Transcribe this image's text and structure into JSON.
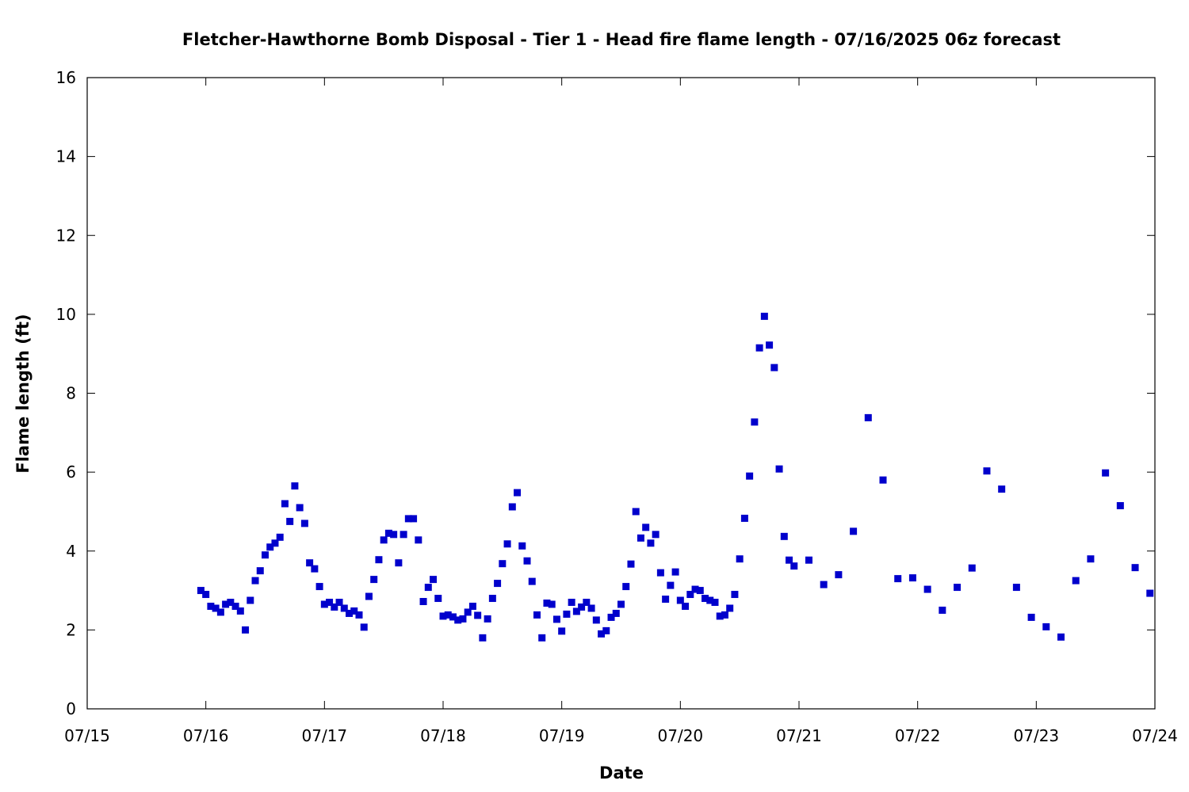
{
  "chart_data": {
    "type": "scatter",
    "title": "Fletcher-Hawthorne Bomb Disposal - Tier 1 - Head fire flame length - 07/16/2025 06z forecast",
    "xlabel": "Date",
    "ylabel": "Flame length (ft)",
    "xlim": [
      "07/15 00:00",
      "07/24 00:00"
    ],
    "ylim": [
      0,
      16
    ],
    "x_ticks": [
      "07/15",
      "07/16",
      "07/17",
      "07/18",
      "07/19",
      "07/20",
      "07/21",
      "07/22",
      "07/23",
      "07/24"
    ],
    "y_ticks": [
      0,
      2,
      4,
      6,
      8,
      10,
      12,
      14,
      16
    ],
    "grid": false,
    "legend": "none",
    "marker_color": "#0000cc",
    "series": [
      {
        "points": [
          [
            "07/15 23:00",
            3.0
          ],
          [
            "07/16 00:00",
            2.9
          ],
          [
            "07/16 01:00",
            2.6
          ],
          [
            "07/16 02:00",
            2.55
          ],
          [
            "07/16 03:00",
            2.45
          ],
          [
            "07/16 04:00",
            2.65
          ],
          [
            "07/16 05:00",
            2.7
          ],
          [
            "07/16 06:00",
            2.6
          ],
          [
            "07/16 07:00",
            2.48
          ],
          [
            "07/16 08:00",
            2.0
          ],
          [
            "07/16 09:00",
            2.75
          ],
          [
            "07/16 10:00",
            3.25
          ],
          [
            "07/16 11:00",
            3.5
          ],
          [
            "07/16 12:00",
            3.9
          ],
          [
            "07/16 13:00",
            4.1
          ],
          [
            "07/16 14:00",
            4.2
          ],
          [
            "07/16 15:00",
            4.35
          ],
          [
            "07/16 16:00",
            5.2
          ],
          [
            "07/16 17:00",
            4.75
          ],
          [
            "07/16 18:00",
            5.65
          ],
          [
            "07/16 19:00",
            5.1
          ],
          [
            "07/16 20:00",
            4.7
          ],
          [
            "07/16 21:00",
            3.7
          ],
          [
            "07/16 22:00",
            3.55
          ],
          [
            "07/16 23:00",
            3.1
          ],
          [
            "07/17 00:00",
            2.65
          ],
          [
            "07/17 01:00",
            2.7
          ],
          [
            "07/17 02:00",
            2.58
          ],
          [
            "07/17 03:00",
            2.7
          ],
          [
            "07/17 04:00",
            2.55
          ],
          [
            "07/17 05:00",
            2.42
          ],
          [
            "07/17 06:00",
            2.48
          ],
          [
            "07/17 07:00",
            2.38
          ],
          [
            "07/17 08:00",
            2.07
          ],
          [
            "07/17 09:00",
            2.85
          ],
          [
            "07/17 10:00",
            3.28
          ],
          [
            "07/17 11:00",
            3.78
          ],
          [
            "07/17 12:00",
            4.28
          ],
          [
            "07/17 13:00",
            4.45
          ],
          [
            "07/17 14:00",
            4.42
          ],
          [
            "07/17 15:00",
            3.7
          ],
          [
            "07/17 16:00",
            4.42
          ],
          [
            "07/17 17:00",
            4.82
          ],
          [
            "07/17 18:00",
            4.82
          ],
          [
            "07/17 19:00",
            4.28
          ],
          [
            "07/17 20:00",
            2.72
          ],
          [
            "07/17 21:00",
            3.08
          ],
          [
            "07/17 22:00",
            3.28
          ],
          [
            "07/17 23:00",
            2.8
          ],
          [
            "07/18 00:00",
            2.35
          ],
          [
            "07/18 01:00",
            2.38
          ],
          [
            "07/18 02:00",
            2.33
          ],
          [
            "07/18 03:00",
            2.25
          ],
          [
            "07/18 04:00",
            2.28
          ],
          [
            "07/18 05:00",
            2.45
          ],
          [
            "07/18 06:00",
            2.6
          ],
          [
            "07/18 07:00",
            2.37
          ],
          [
            "07/18 08:00",
            1.8
          ],
          [
            "07/18 09:00",
            2.28
          ],
          [
            "07/18 10:00",
            2.8
          ],
          [
            "07/18 11:00",
            3.18
          ],
          [
            "07/18 12:00",
            3.68
          ],
          [
            "07/18 13:00",
            4.18
          ],
          [
            "07/18 14:00",
            5.12
          ],
          [
            "07/18 15:00",
            5.48
          ],
          [
            "07/18 16:00",
            4.13
          ],
          [
            "07/18 17:00",
            3.75
          ],
          [
            "07/18 18:00",
            3.23
          ],
          [
            "07/18 19:00",
            2.38
          ],
          [
            "07/18 20:00",
            1.8
          ],
          [
            "07/18 21:00",
            2.68
          ],
          [
            "07/18 22:00",
            2.65
          ],
          [
            "07/18 23:00",
            2.27
          ],
          [
            "07/19 00:00",
            1.97
          ],
          [
            "07/19 01:00",
            2.4
          ],
          [
            "07/19 02:00",
            2.7
          ],
          [
            "07/19 03:00",
            2.47
          ],
          [
            "07/19 04:00",
            2.58
          ],
          [
            "07/19 05:00",
            2.7
          ],
          [
            "07/19 06:00",
            2.55
          ],
          [
            "07/19 07:00",
            2.25
          ],
          [
            "07/19 08:00",
            1.9
          ],
          [
            "07/19 09:00",
            1.98
          ],
          [
            "07/19 10:00",
            2.32
          ],
          [
            "07/19 11:00",
            2.42
          ],
          [
            "07/19 12:00",
            2.65
          ],
          [
            "07/19 13:00",
            3.1
          ],
          [
            "07/19 14:00",
            3.67
          ],
          [
            "07/19 15:00",
            5.0
          ],
          [
            "07/19 16:00",
            4.33
          ],
          [
            "07/19 17:00",
            4.6
          ],
          [
            "07/19 18:00",
            4.2
          ],
          [
            "07/19 19:00",
            4.42
          ],
          [
            "07/19 20:00",
            3.45
          ],
          [
            "07/19 21:00",
            2.78
          ],
          [
            "07/19 22:00",
            3.13
          ],
          [
            "07/19 23:00",
            3.47
          ],
          [
            "07/20 00:00",
            2.75
          ],
          [
            "07/20 01:00",
            2.6
          ],
          [
            "07/20 02:00",
            2.9
          ],
          [
            "07/20 03:00",
            3.03
          ],
          [
            "07/20 04:00",
            3.0
          ],
          [
            "07/20 05:00",
            2.8
          ],
          [
            "07/20 06:00",
            2.75
          ],
          [
            "07/20 07:00",
            2.7
          ],
          [
            "07/20 08:00",
            2.35
          ],
          [
            "07/20 09:00",
            2.38
          ],
          [
            "07/20 10:00",
            2.55
          ],
          [
            "07/20 11:00",
            2.9
          ],
          [
            "07/20 12:00",
            3.8
          ],
          [
            "07/20 13:00",
            4.83
          ],
          [
            "07/20 14:00",
            5.9
          ],
          [
            "07/20 15:00",
            7.27
          ],
          [
            "07/20 16:00",
            9.15
          ],
          [
            "07/20 17:00",
            9.95
          ],
          [
            "07/20 18:00",
            9.22
          ],
          [
            "07/20 19:00",
            8.65
          ],
          [
            "07/20 20:00",
            6.08
          ],
          [
            "07/20 21:00",
            4.37
          ],
          [
            "07/20 22:00",
            3.77
          ],
          [
            "07/20 23:00",
            3.62
          ],
          [
            "07/21 02:00",
            3.77
          ],
          [
            "07/21 05:00",
            3.15
          ],
          [
            "07/21 08:00",
            3.4
          ],
          [
            "07/21 11:00",
            4.5
          ],
          [
            "07/21 14:00",
            7.38
          ],
          [
            "07/21 17:00",
            5.8
          ],
          [
            "07/21 20:00",
            3.3
          ],
          [
            "07/21 23:00",
            3.32
          ],
          [
            "07/22 02:00",
            3.03
          ],
          [
            "07/22 05:00",
            2.5
          ],
          [
            "07/22 08:00",
            3.08
          ],
          [
            "07/22 11:00",
            3.57
          ],
          [
            "07/22 14:00",
            6.03
          ],
          [
            "07/22 17:00",
            5.57
          ],
          [
            "07/22 20:00",
            3.08
          ],
          [
            "07/22 23:00",
            2.32
          ],
          [
            "07/23 02:00",
            2.08
          ],
          [
            "07/23 05:00",
            1.82
          ],
          [
            "07/23 08:00",
            3.25
          ],
          [
            "07/23 11:00",
            3.8
          ],
          [
            "07/23 14:00",
            5.98
          ],
          [
            "07/23 17:00",
            5.15
          ],
          [
            "07/23 20:00",
            3.58
          ],
          [
            "07/23 23:00",
            2.93
          ]
        ]
      }
    ]
  }
}
